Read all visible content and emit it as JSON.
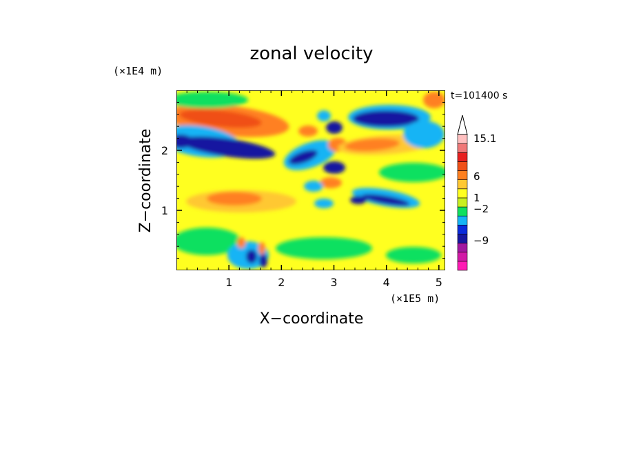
{
  "chart_data": {
    "type": "heatmap",
    "title": "zonal velocity",
    "time_label": "t=101400 s",
    "xlabel": "X−coordinate",
    "ylabel": "Z−coordinate",
    "x_scale_label": "(×1E5 m)",
    "y_scale_label": "(×1E4 m)",
    "x_ticks": [
      "1",
      "2",
      "3",
      "4",
      "5"
    ],
    "y_ticks": [
      "1",
      "2"
    ],
    "xlim": [
      0,
      5.12
    ],
    "ylim": [
      0,
      3.0
    ],
    "colorbar": {
      "tick_labels": [
        "15.1",
        "6",
        "1",
        "−2",
        "−9"
      ],
      "colors": [
        "#ff1bb4",
        "#d21aa6",
        "#a218a0",
        "#1717a0",
        "#0a2bdc",
        "#16b4f5",
        "#10e060",
        "#c8f020",
        "#ffff20",
        "#ffc832",
        "#ff8020",
        "#f05018",
        "#e82020",
        "#f07878",
        "#ffc0c0"
      ]
    }
  }
}
